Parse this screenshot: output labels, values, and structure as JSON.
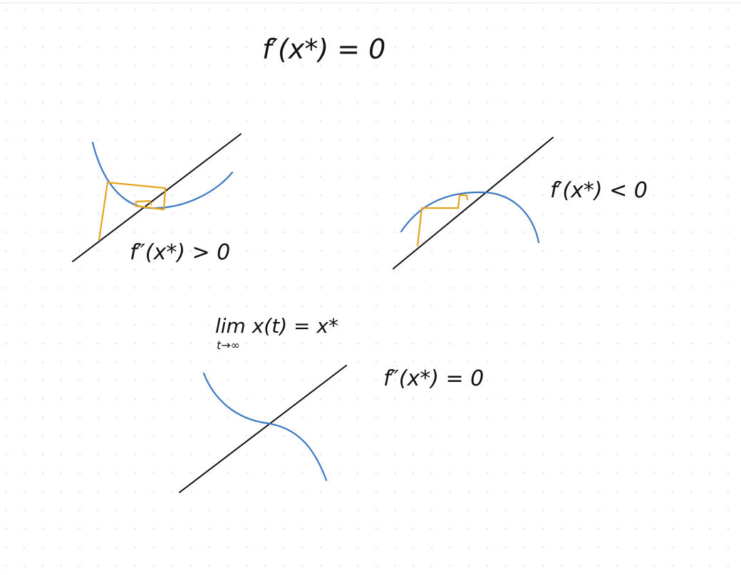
{
  "colors": {
    "background": "#ffffff",
    "grid_dot": "#d9dde2",
    "top_rule": "#e3e3e3",
    "axis_line": "#111111",
    "curve": "#3a78c2",
    "cobweb": "#e6a31e",
    "ink": "#111111"
  },
  "equations": {
    "top": "f′(x*) = 0",
    "stable": "f″(x*) > 0",
    "unstable": "f′(x*) < 0",
    "limit_main": "lim x(t) = x*",
    "limit_sub": "t→∞",
    "inflection": "f″(x*) = 0"
  }
}
